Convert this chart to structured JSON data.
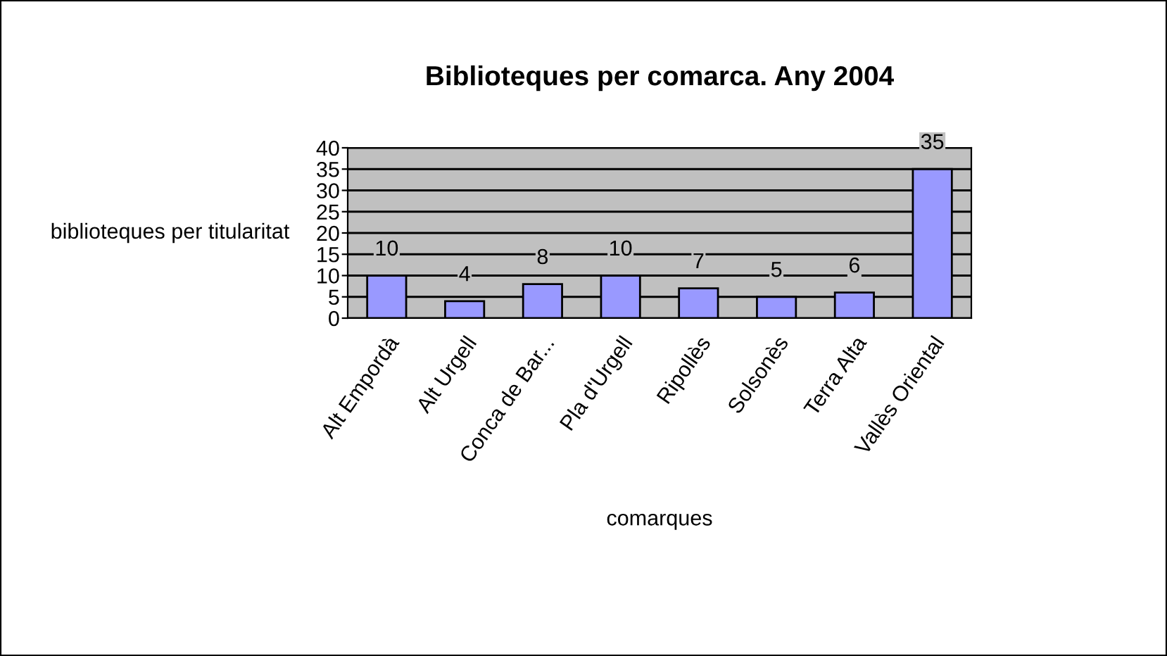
{
  "chart_data": {
    "type": "bar",
    "title": "Biblioteques per comarca. Any 2004",
    "xlabel": "comarques",
    "ylabel": "biblioteques per titularitat",
    "categories": [
      "Alt Empordà",
      "Alt Urgell",
      "Conca de Bar...",
      "Pla d'Urgell",
      "Ripollès",
      "Solsonès",
      "Terra Alta",
      "Vallès Oriental"
    ],
    "values": [
      10,
      4,
      8,
      10,
      7,
      5,
      6,
      35
    ],
    "color": "#9999ff",
    "data_labels": true,
    "ylim": [
      0,
      40
    ],
    "yticks": [
      0,
      5,
      10,
      15,
      20,
      25,
      30,
      35,
      40
    ],
    "grid": "y",
    "legend": false
  }
}
